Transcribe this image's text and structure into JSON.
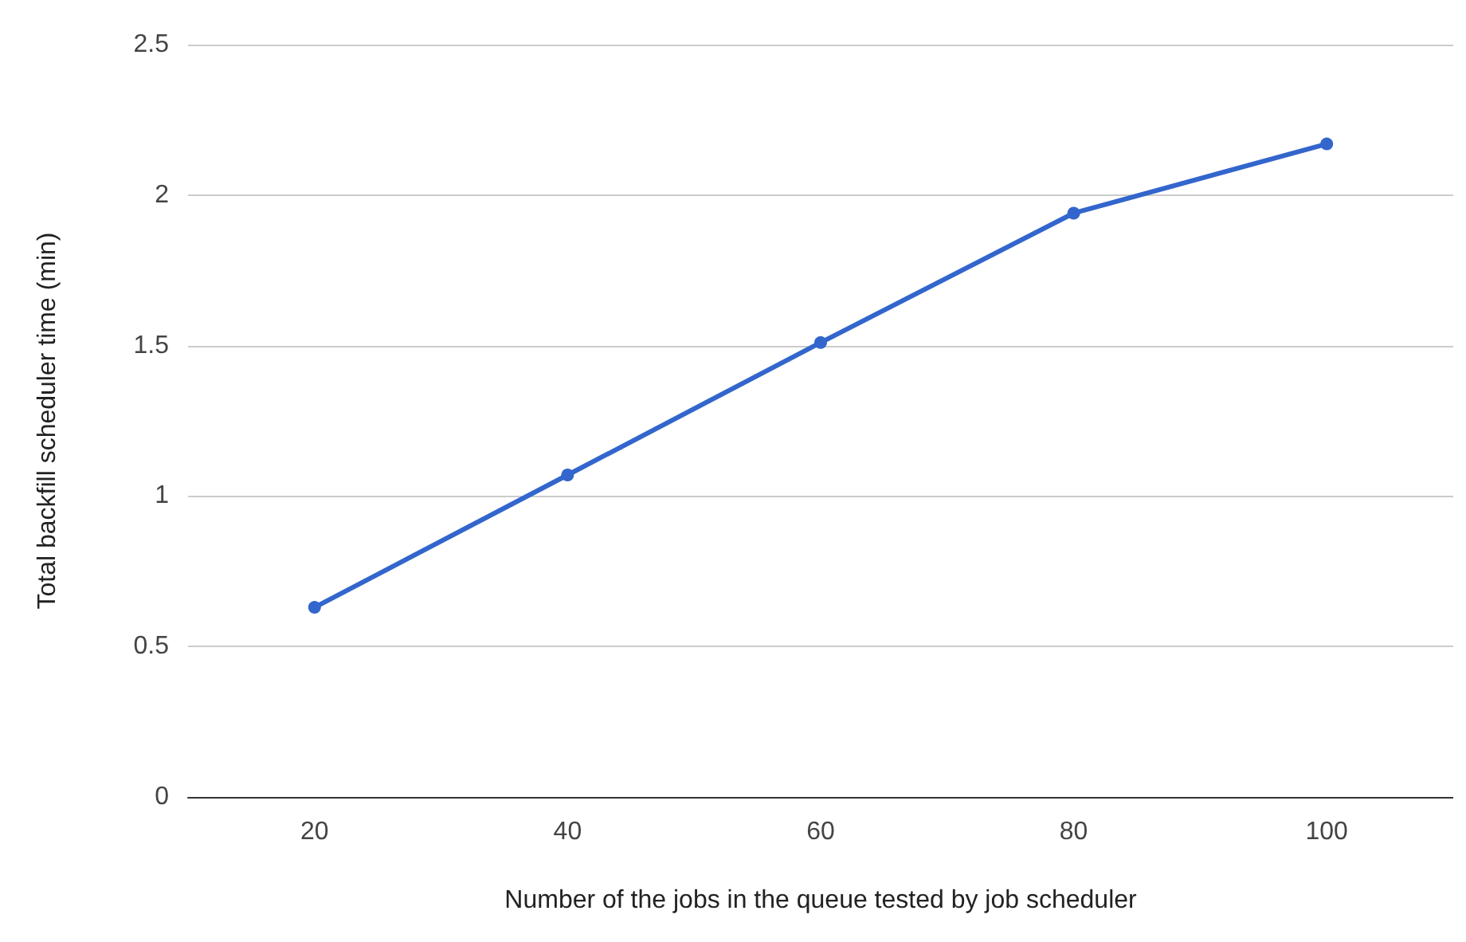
{
  "chart_data": {
    "type": "line",
    "xlabel": "Number of the jobs in the queue tested by job scheduler",
    "ylabel": "Total backfill scheduler time (min)",
    "categories": [
      "20",
      "40",
      "60",
      "80",
      "100"
    ],
    "series": [
      {
        "color": "#3366cc",
        "values": [
          0.63,
          1.07,
          1.51,
          1.94,
          2.17
        ]
      }
    ],
    "ylim": [
      0,
      2.5
    ],
    "yticks": [
      0,
      0.5,
      1,
      1.5,
      2,
      2.5
    ],
    "grid": "y",
    "marker": "circle",
    "line_style": "solid"
  }
}
